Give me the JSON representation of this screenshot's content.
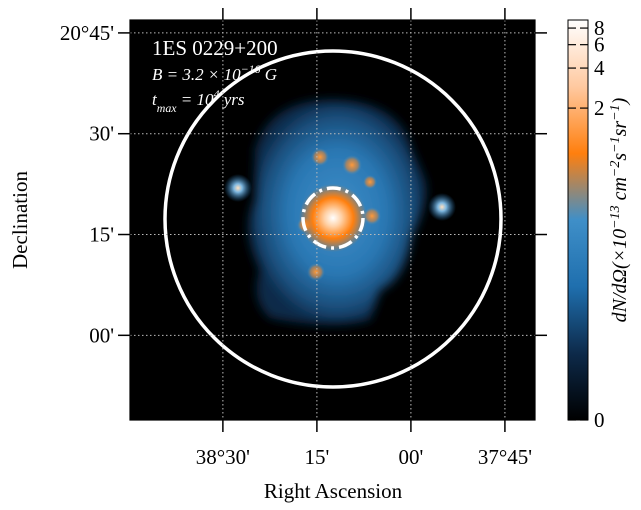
{
  "chart_data": {
    "type": "skymap",
    "annotation_lines": [
      [
        {
          "t": "1ES 0229+200"
        }
      ],
      [
        {
          "t": "B = 3.2 × 10"
        },
        {
          "t": "−16",
          "sup": true
        },
        {
          "t": " G"
        }
      ],
      [
        {
          "t": "t"
        },
        {
          "t": "max",
          "sub": true
        },
        {
          "t": " = 10"
        },
        {
          "t": "4",
          "sup": true
        },
        {
          "t": " yrs"
        }
      ]
    ],
    "x_label": "Right Ascension",
    "y_label": "Declination",
    "xlim": [
      38.747,
      37.67
    ],
    "ylim": [
      19.79,
      20.782
    ],
    "xticks": [
      {
        "value": 38.5,
        "label": "38°30'"
      },
      {
        "value": 38.25,
        "label": "15'"
      },
      {
        "value": 38.0,
        "label": "00'"
      },
      {
        "value": 37.75,
        "label": "37°45'"
      }
    ],
    "yticks": [
      {
        "value": 20.75,
        "label": "20°45'"
      },
      {
        "value": 20.5,
        "label": "30'"
      },
      {
        "value": 20.25,
        "label": "15'"
      },
      {
        "value": 20.0,
        "label": "00'"
      }
    ],
    "grid": true,
    "colorbar": {
      "scale": "asinh",
      "linear_width": 0.018,
      "clim": [
        0,
        9.2
      ],
      "ticks": [
        0,
        2,
        4,
        6,
        8
      ],
      "colors": [
        "#000000",
        "#0d2a4a",
        "#1f6fae",
        "#3f8fc8",
        "#ff7f0e",
        "#ffc9a0",
        "#ffffff"
      ],
      "label": [
        {
          "t": "dN/dΩ(×10"
        },
        {
          "t": "−13",
          "sup": true
        },
        {
          "t": " cm"
        },
        {
          "t": "−2",
          "sup": true
        },
        {
          "t": "s"
        },
        {
          "t": "−1",
          "sup": true
        },
        {
          "t": "sr"
        },
        {
          "t": "−1",
          "sup": true
        },
        {
          "t": ")"
        }
      ]
    }
  }
}
